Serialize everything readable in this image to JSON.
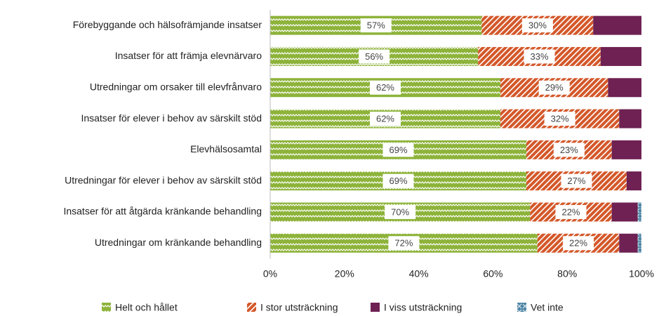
{
  "chart_data": {
    "type": "stacked_bar_horizontal",
    "categories": [
      "Förebyggande och hälsofrämjande insatser",
      "Insatser för att främja elevnärvaro",
      "Utredningar om orsaker till elevfrånvaro",
      "Insatser för elever i behov av särskilt stöd",
      "Elevhälsosamtal",
      "Utredningar för elever i behov av särskilt stöd",
      "Insatser för att åtgärda kränkande behandling",
      "Utredningar om kränkande behandling"
    ],
    "series": [
      {
        "name": "Helt och hållet",
        "color": "#8db33a",
        "pattern": "zigzag",
        "values": [
          57,
          56,
          62,
          62,
          69,
          69,
          70,
          72
        ],
        "value_labels": [
          "57%",
          "56%",
          "62%",
          "62%",
          "69%",
          "69%",
          "70%",
          "72%"
        ]
      },
      {
        "name": "I stor utsträckning",
        "color": "#d4582a",
        "pattern": "diagonal",
        "values": [
          30,
          33,
          29,
          32,
          23,
          27,
          22,
          22
        ],
        "value_labels": [
          "30%",
          "33%",
          "29%",
          "32%",
          "23%",
          "27%",
          "22%",
          "22%"
        ]
      },
      {
        "name": "I viss utsträckning",
        "color": "#6e2152",
        "pattern": "solid",
        "values": [
          13,
          11,
          9,
          6,
          8,
          4,
          7,
          5
        ]
      },
      {
        "name": "Vet inte",
        "color": "#4f86a6",
        "pattern": "cross",
        "values": [
          0,
          0,
          0,
          0,
          0,
          0,
          1,
          1
        ]
      }
    ],
    "xlim": [
      0,
      100
    ],
    "xticks": [
      {
        "value": 0,
        "label": "0%"
      },
      {
        "value": 20,
        "label": "20%"
      },
      {
        "value": 40,
        "label": "40%"
      },
      {
        "value": 60,
        "label": "60%"
      },
      {
        "value": 80,
        "label": "80%"
      },
      {
        "value": 100,
        "label": "100%"
      }
    ],
    "grid": false,
    "legend": "bottom"
  }
}
